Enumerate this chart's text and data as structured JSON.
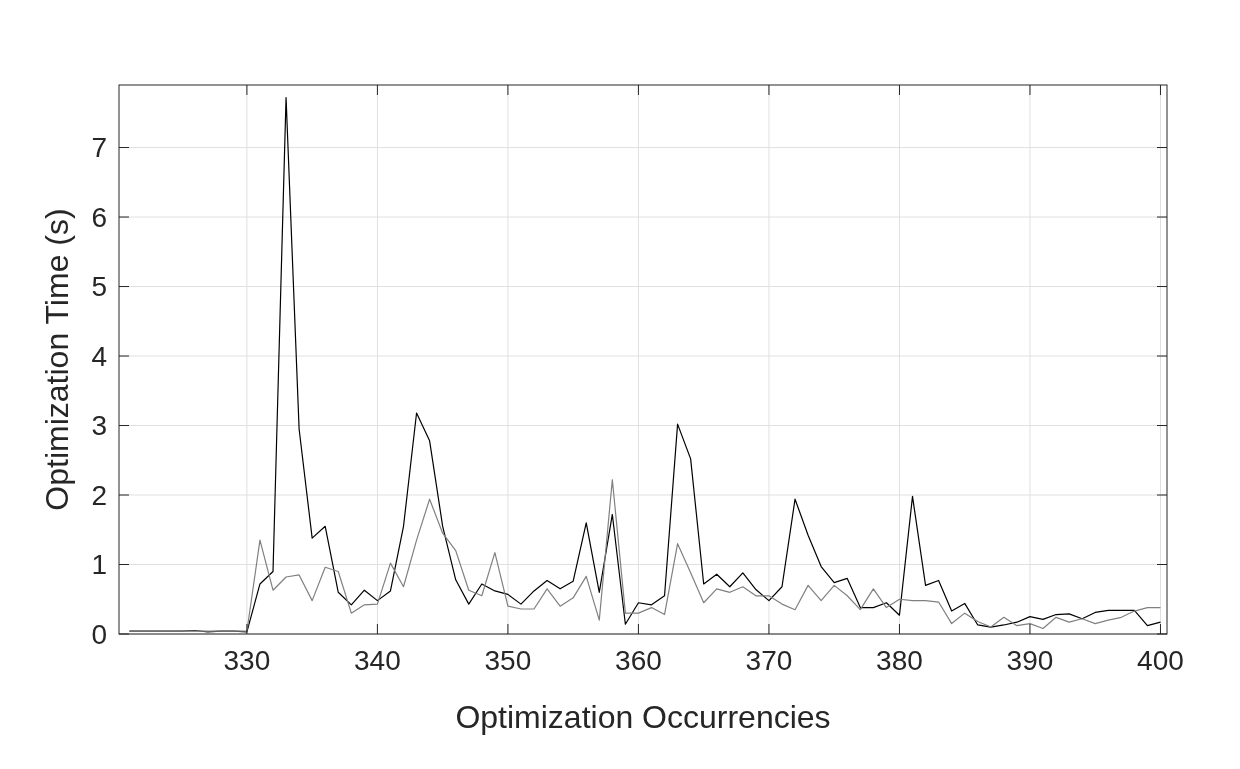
{
  "chart_data": {
    "type": "line",
    "xlabel": "Optimization Occurrencies",
    "ylabel": "Optimization Time (s)",
    "x": [
      321,
      322,
      323,
      324,
      325,
      326,
      327,
      328,
      329,
      330,
      331,
      332,
      333,
      334,
      335,
      336,
      337,
      338,
      339,
      340,
      341,
      342,
      343,
      344,
      345,
      346,
      347,
      348,
      349,
      350,
      351,
      352,
      353,
      354,
      355,
      356,
      357,
      358,
      359,
      360,
      361,
      362,
      363,
      364,
      365,
      366,
      367,
      368,
      369,
      370,
      371,
      372,
      373,
      374,
      375,
      376,
      377,
      378,
      379,
      380,
      381,
      382,
      383,
      384,
      385,
      386,
      387,
      388,
      389,
      390,
      391,
      392,
      393,
      394,
      395,
      396,
      397,
      398,
      399,
      400
    ],
    "series": [
      {
        "color": "#000000",
        "values": [
          0.04,
          0.04,
          0.04,
          0.04,
          0.04,
          0.05,
          0.03,
          0.04,
          0.04,
          0.03,
          0.72,
          0.9,
          7.72,
          2.95,
          1.38,
          1.55,
          0.6,
          0.42,
          0.63,
          0.48,
          0.62,
          1.55,
          3.18,
          2.78,
          1.55,
          0.78,
          0.43,
          0.72,
          0.62,
          0.57,
          0.43,
          0.62,
          0.77,
          0.65,
          0.76,
          1.6,
          0.6,
          1.72,
          0.14,
          0.45,
          0.42,
          0.55,
          3.02,
          2.52,
          0.72,
          0.86,
          0.68,
          0.88,
          0.64,
          0.48,
          0.68,
          1.94,
          1.42,
          0.97,
          0.74,
          0.8,
          0.38,
          0.38,
          0.45,
          0.27,
          1.98,
          0.7,
          0.77,
          0.33,
          0.44,
          0.13,
          0.1,
          0.13,
          0.17,
          0.25,
          0.21,
          0.28,
          0.29,
          0.22,
          0.31,
          0.34,
          0.34,
          0.34,
          0.12,
          0.17
        ]
      },
      {
        "color": "#808080",
        "values": [
          0.04,
          0.04,
          0.04,
          0.04,
          0.04,
          0.04,
          0.04,
          0.04,
          0.04,
          0.04,
          1.35,
          0.63,
          0.82,
          0.85,
          0.48,
          0.96,
          0.9,
          0.3,
          0.42,
          0.43,
          1.02,
          0.68,
          1.35,
          1.94,
          1.45,
          1.2,
          0.63,
          0.55,
          1.17,
          0.4,
          0.36,
          0.36,
          0.65,
          0.4,
          0.52,
          0.83,
          0.2,
          2.22,
          0.3,
          0.3,
          0.38,
          0.28,
          1.3,
          0.88,
          0.45,
          0.65,
          0.6,
          0.68,
          0.55,
          0.55,
          0.43,
          0.35,
          0.7,
          0.48,
          0.7,
          0.55,
          0.35,
          0.65,
          0.38,
          0.5,
          0.48,
          0.48,
          0.46,
          0.15,
          0.3,
          0.18,
          0.1,
          0.24,
          0.12,
          0.15,
          0.08,
          0.24,
          0.17,
          0.22,
          0.15,
          0.2,
          0.24,
          0.33,
          0.38,
          0.38
        ]
      }
    ],
    "xlim": [
      320.2,
      400.5
    ],
    "xticks": [
      330,
      340,
      350,
      360,
      370,
      380,
      390,
      400
    ],
    "ylim": [
      0,
      7.9
    ],
    "yticks": [
      0,
      1,
      2,
      3,
      4,
      5,
      6,
      7
    ],
    "grid": true,
    "line_style": "solid",
    "marker": "none"
  }
}
